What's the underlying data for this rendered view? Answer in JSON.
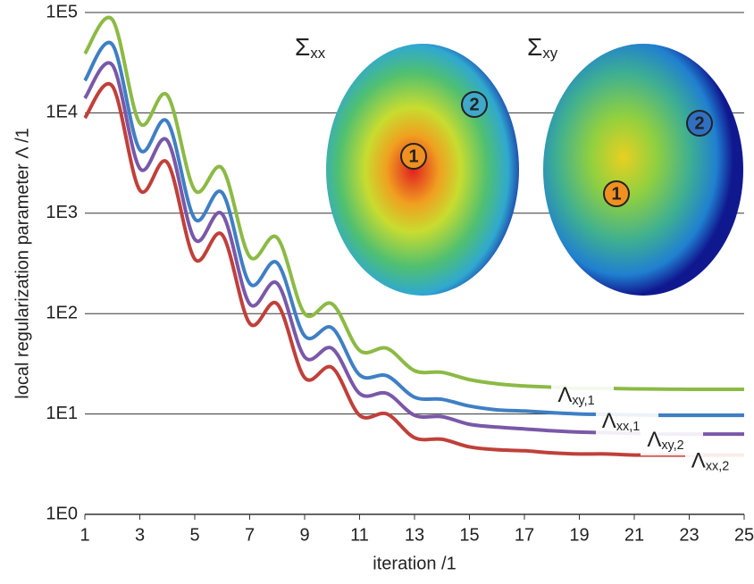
{
  "chart_data": {
    "type": "line",
    "x_label": "iteration /1",
    "y_label": "local regularization parameter Λ /1",
    "log_y": true,
    "grid": true,
    "x": [
      1,
      2,
      3,
      4,
      5,
      6,
      7,
      8,
      9,
      10,
      11,
      12,
      13,
      14,
      15,
      16,
      17,
      18,
      19,
      20,
      21,
      22,
      23,
      24,
      25
    ],
    "xlim": [
      1,
      25
    ],
    "xticks": [
      1,
      3,
      5,
      7,
      9,
      11,
      13,
      15,
      17,
      19,
      21,
      23,
      25
    ],
    "ylim": [
      1,
      100000
    ],
    "yticks": [
      {
        "value": 1,
        "label": "1E0"
      },
      {
        "value": 10,
        "label": "1E1"
      },
      {
        "value": 100,
        "label": "1E2"
      },
      {
        "value": 1000,
        "label": "1E3"
      },
      {
        "value": 10000,
        "label": "1E4"
      },
      {
        "value": 100000,
        "label": "1E5"
      }
    ],
    "series": [
      {
        "name": "Λxy,1",
        "color": "#8cba45",
        "values": [
          39000,
          85000,
          7900,
          15000,
          1700,
          2800,
          370,
          570,
          100,
          125,
          43,
          45,
          27,
          26,
          22,
          20,
          19,
          18.5,
          18,
          18,
          17.8,
          17.7,
          17.6,
          17.6,
          17.6
        ]
      },
      {
        "name": "Λxx,1",
        "color": "#3f7fc4",
        "values": [
          21000,
          48000,
          4300,
          8200,
          880,
          1600,
          200,
          320,
          60,
          72,
          24.5,
          24,
          14.7,
          14,
          12,
          11,
          10.7,
          10.3,
          10,
          9.9,
          9.8,
          9.7,
          9.7,
          9.7,
          9.7
        ]
      },
      {
        "name": "Λxy,2",
        "color": "#7a58a8",
        "values": [
          14000,
          30000,
          2800,
          5300,
          550,
          980,
          125,
          200,
          37,
          45,
          16,
          16,
          9.7,
          9.4,
          7.9,
          7.4,
          7.1,
          6.8,
          6.6,
          6.5,
          6.4,
          6.3,
          6.3,
          6.3,
          6.3
        ]
      },
      {
        "name": "Λxx,2",
        "color": "#c0403a",
        "values": [
          8900,
          18500,
          1700,
          3200,
          350,
          610,
          80,
          125,
          23,
          29,
          9.7,
          10,
          5.8,
          5.6,
          4.7,
          4.4,
          4.3,
          4.1,
          4.0,
          4.0,
          3.9,
          3.9,
          3.9,
          3.9,
          3.9
        ]
      }
    ],
    "annotations": {
      "sigma_xx": "Σxx",
      "sigma_xy": "Σxy",
      "left_1": "1",
      "left_2": "2",
      "right_1": "1",
      "right_2": "2"
    }
  }
}
